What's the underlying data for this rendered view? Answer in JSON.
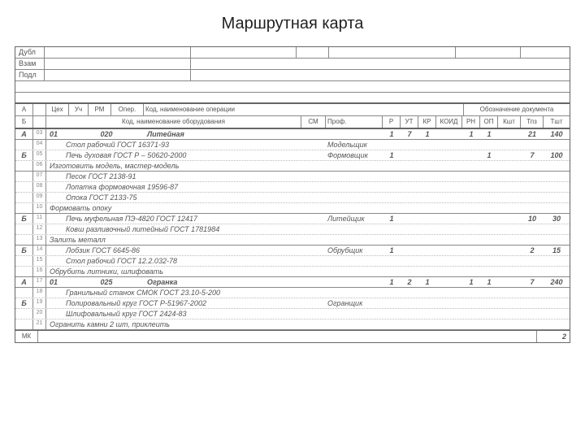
{
  "title": "Маршрутная карта",
  "top_labels": {
    "dubl": "Дубл",
    "vzam": "Взам",
    "podl": "Подл"
  },
  "hdr": {
    "a": "А",
    "b": "Б",
    "cex": "Цех",
    "uch": "Уч",
    "rm": "РМ",
    "oper": "Опер.",
    "opname": "Код, наименование операции",
    "doc": "Обозначение документа",
    "equip": "Код, наименование оборудования",
    "sm": "СМ",
    "prof": "Проф.",
    "r": "Р",
    "ut": "УТ",
    "kr": "КР",
    "koid": "КОИД",
    "rn": "РН",
    "op": "ОП",
    "ksh": "Кшт",
    "tpz": "Тпз",
    "tsh": "Тшт"
  },
  "rows": [
    {
      "lab": "А",
      "n": "03",
      "type": "op",
      "cex": "01",
      "oper": "020",
      "name": "Литейная",
      "nums": {
        "r": "1",
        "ut": "7",
        "kr": "1",
        "rn": "1",
        "op": "1",
        "tpz": "21",
        "tsh": "140"
      }
    },
    {
      "lab": "",
      "n": "04",
      "type": "equip",
      "text": "Стол рабочий ГОСТ 16371-93",
      "prof": "Модельщик"
    },
    {
      "lab": "Б",
      "n": "05",
      "type": "equip",
      "text": "Печь духовая ГОСТ Р – 50620-2000",
      "prof": "Формовщик",
      "nums": {
        "r": "1",
        "op": "1",
        "tpz": "7",
        "tsh": "100"
      }
    },
    {
      "lab": "",
      "n": "06",
      "type": "task",
      "text": "Изготовить модель, мастер-модель"
    },
    {
      "lab": "",
      "n": "07",
      "type": "equip",
      "text": "Песок ГОСТ 2138-91"
    },
    {
      "lab": "",
      "n": "08",
      "type": "equip",
      "text": "Лопатка формовочная 19596-87"
    },
    {
      "lab": "",
      "n": "09",
      "type": "equip",
      "text": "Опока ГОСТ 2133-75"
    },
    {
      "lab": "",
      "n": "10",
      "type": "task",
      "text": "Формовать опоку"
    },
    {
      "lab": "Б",
      "n": "11",
      "type": "equip",
      "text": "Печь муфельная ПЭ-4820 ГОСТ 12417",
      "prof": "Литейщик",
      "nums": {
        "r": "1",
        "tpz": "10",
        "tsh": "30"
      }
    },
    {
      "lab": "",
      "n": "12",
      "type": "equip",
      "text": "Ковш разливочный литейный ГОСТ 1781984"
    },
    {
      "lab": "",
      "n": "13",
      "type": "task",
      "text": "Залить металл"
    },
    {
      "lab": "Б",
      "n": "14",
      "type": "equip",
      "text": "Лобзик ГОСТ 6645-86",
      "prof": "Обрубщик",
      "nums": {
        "r": "1",
        "tpz": "2",
        "tsh": "15"
      }
    },
    {
      "lab": "",
      "n": "15",
      "type": "equip",
      "text": "Стол рабочий ГОСТ 12.2.032-78"
    },
    {
      "lab": "",
      "n": "16",
      "type": "task",
      "text": "Обрубить литники, шлифовать"
    },
    {
      "lab": "А",
      "n": "17",
      "type": "op",
      "cex": "01",
      "oper": "025",
      "name": "Огранка",
      "nums": {
        "r": "1",
        "ut": "2",
        "kr": "1",
        "rn": "1",
        "op": "1",
        "tpz": "7",
        "tsh": "240"
      }
    },
    {
      "lab": "",
      "n": "18",
      "type": "equip",
      "text": "Гранильный станок СМОК ГОСТ 23.10-5-200"
    },
    {
      "lab": "Б",
      "n": "19",
      "type": "equip",
      "text": "Полировальный круг ГОСТ Р-51967-2002",
      "prof": "Огранщик"
    },
    {
      "lab": "",
      "n": "20",
      "type": "equip",
      "text": "Шлифовальный круг ГОСТ 2424-83"
    },
    {
      "lab": "",
      "n": "21",
      "type": "task",
      "text": "Огранить камни 2 шт, приклеить"
    }
  ],
  "footer": {
    "mk": "МК",
    "page": "2"
  }
}
